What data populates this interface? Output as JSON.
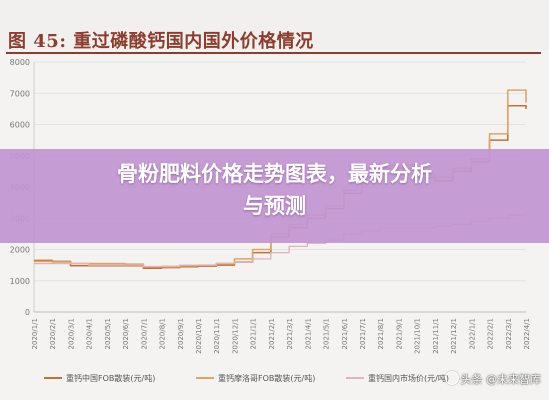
{
  "figure": {
    "title": "图 45:  重过磷酸钙国内国外价格情况"
  },
  "banner": {
    "line1": "骨粉肥料价格走势图表，最新分析",
    "line2": "与预测"
  },
  "watermark": {
    "text": "头条 @未来智库"
  },
  "colors": {
    "title": "#8b3e2f",
    "series1": "#c0703a",
    "series2": "#dea56a",
    "series3": "#ddb4b8",
    "grid": "#e2e2e2",
    "axis_text": "#777777",
    "banner": "#c294d2"
  },
  "chart_data": {
    "type": "line",
    "title": "",
    "xlabel": "",
    "ylabel": "",
    "ylim": [
      0,
      8000
    ],
    "yticks": [
      0,
      1000,
      2000,
      3000,
      4000,
      5000,
      6000,
      7000,
      8000
    ],
    "grid": true,
    "legend_position": "bottom",
    "x": [
      "2020/1/1",
      "2020/2/1",
      "2020/3/1",
      "2020/4/1",
      "2020/5/1",
      "2020/6/1",
      "2020/7/1",
      "2020/8/1",
      "2020/9/1",
      "2020/10/1",
      "2020/11/1",
      "2020/12/1",
      "2021/1/1",
      "2021/2/1",
      "2021/3/1",
      "2021/4/1",
      "2021/5/1",
      "2021/6/1",
      "2021/7/1",
      "2021/8/1",
      "2021/9/1",
      "2021/10/1",
      "2021/11/1",
      "2021/12/1",
      "2022/1/1",
      "2022/2/1",
      "2022/3/1",
      "2022/4/1"
    ],
    "series": [
      {
        "name": "重钙中国FOB散装(元/吨)",
        "values": [
          1650,
          1620,
          1480,
          1480,
          1480,
          1480,
          1400,
          1420,
          1450,
          1470,
          1500,
          1600,
          1900,
          2400,
          2700,
          3000,
          3300,
          3800,
          4200,
          4600,
          4600,
          4300,
          4200,
          4500,
          4800,
          5500,
          6600,
          6500
        ]
      },
      {
        "name": "重钙摩洛哥FOB散装(元/吨)",
        "values": [
          1620,
          1600,
          1550,
          1550,
          1550,
          1530,
          1450,
          1460,
          1480,
          1500,
          1550,
          1700,
          2000,
          2500,
          2800,
          3100,
          3400,
          3900,
          4300,
          4700,
          4700,
          4400,
          4300,
          4600,
          4900,
          5700,
          7100,
          6700
        ]
      },
      {
        "name": "重钙国内市场价(元/吨)",
        "values": [
          1550,
          1550,
          1550,
          1500,
          1500,
          1500,
          1450,
          1450,
          1500,
          1500,
          1550,
          1600,
          1700,
          1900,
          2100,
          2200,
          2300,
          2500,
          2600,
          2700,
          2700,
          2700,
          2750,
          2800,
          2900,
          3000,
          3100,
          3200
        ]
      }
    ]
  }
}
